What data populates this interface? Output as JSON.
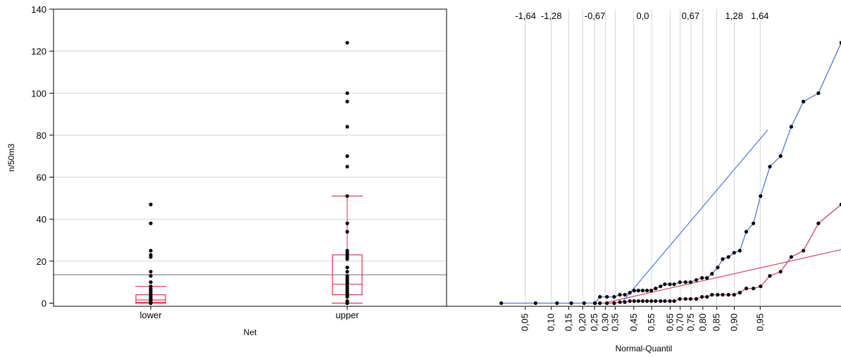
{
  "y_axis": {
    "label": "n/50m3",
    "ticks": [
      0,
      20,
      40,
      60,
      80,
      100,
      120,
      140
    ],
    "range": [
      -1.5,
      140
    ]
  },
  "colors": {
    "upper": "#4f76d9",
    "lower": "#d9435f",
    "box": "#e0304a",
    "grid": "#d4d4d4",
    "mean_line": "#888888",
    "points": "#000000"
  },
  "chart_data": [
    {
      "type": "box",
      "xlabel": "Net",
      "ylabel": "n/50m3",
      "ylim": [
        -1.5,
        140
      ],
      "grid": "horizontal",
      "overall_line": 13.5,
      "categories": [
        "lower",
        "upper"
      ],
      "groups": [
        {
          "name": "lower",
          "whisker_low": 0,
          "q1": 0.3,
          "median": 1.5,
          "q3": 4,
          "whisker_high": 8,
          "points": [
            47,
            38,
            25,
            23,
            22,
            15,
            13,
            10,
            8,
            7,
            6,
            5,
            4,
            3,
            3,
            2,
            2,
            1.5,
            1,
            1,
            0.5,
            0.3,
            0,
            0,
            0
          ]
        },
        {
          "name": "upper",
          "whisker_low": 0,
          "q1": 4,
          "median": 9,
          "q3": 23,
          "whisker_high": 51,
          "points": [
            124,
            100,
            96,
            84,
            70,
            65,
            51,
            38,
            34,
            25,
            24,
            23,
            22,
            21,
            17,
            15,
            13,
            12,
            11,
            10,
            9,
            8,
            7,
            6,
            5,
            4,
            3,
            1,
            0,
            0
          ]
        }
      ]
    },
    {
      "type": "line",
      "xlabel": "Normal-Quantil",
      "ylim": [
        -1.5,
        140
      ],
      "grid": "vertical",
      "bottom_ticks": [
        "0,05",
        "0,10",
        "0,15",
        "0,20",
        "0,25",
        "0,30",
        "0,35",
        "0,45",
        "0,55",
        "0,65",
        "0,70",
        "0,75",
        "0,80",
        "0,85",
        "0,90",
        "0,95"
      ],
      "top_ticks": [
        "-1,64",
        "-1,28",
        "-0,67",
        "0,0",
        "0,67",
        "1,28",
        "1,64"
      ],
      "series": [
        {
          "name": "upper",
          "reference_line": {
            "from": [
              -0.3,
              0
            ],
            "to": [
              1.75,
              82.5
            ]
          },
          "points": [
            [
              -1.98,
              0
            ],
            [
              -1.5,
              0
            ],
            [
              -1.2,
              0
            ],
            [
              -1.0,
              0
            ],
            [
              -0.82,
              0
            ],
            [
              -0.67,
              0
            ],
            [
              -0.6,
              3
            ],
            [
              -0.5,
              3
            ],
            [
              -0.4,
              3
            ],
            [
              -0.32,
              4
            ],
            [
              -0.25,
              4
            ],
            [
              -0.18,
              5
            ],
            [
              -0.12,
              6
            ],
            [
              -0.06,
              6
            ],
            [
              0.0,
              6
            ],
            [
              0.06,
              6
            ],
            [
              0.12,
              6
            ],
            [
              0.18,
              7
            ],
            [
              0.25,
              8
            ],
            [
              0.31,
              9
            ],
            [
              0.38,
              9
            ],
            [
              0.44,
              9
            ],
            [
              0.52,
              10
            ],
            [
              0.6,
              10
            ],
            [
              0.67,
              10
            ],
            [
              0.75,
              11
            ],
            [
              0.83,
              12
            ],
            [
              0.9,
              12
            ],
            [
              0.97,
              14
            ],
            [
              1.05,
              17
            ],
            [
              1.12,
              21
            ],
            [
              1.2,
              22
            ],
            [
              1.28,
              24
            ],
            [
              1.36,
              25
            ],
            [
              1.45,
              34
            ],
            [
              1.55,
              38
            ],
            [
              1.65,
              51
            ],
            [
              1.78,
              65
            ],
            [
              1.93,
              70
            ],
            [
              2.08,
              84
            ],
            [
              2.25,
              96
            ],
            [
              2.46,
              100
            ],
            [
              2.78,
              124
            ]
          ]
        },
        {
          "name": "lower",
          "reference_line": {
            "from": [
              -0.55,
              0
            ],
            "to": [
              2.78,
              25.5
            ]
          },
          "points": [
            [
              -0.67,
              0
            ],
            [
              -0.6,
              0
            ],
            [
              -0.5,
              0
            ],
            [
              -0.4,
              0
            ],
            [
              -0.32,
              0.5
            ],
            [
              -0.25,
              0.5
            ],
            [
              -0.18,
              1
            ],
            [
              -0.12,
              1
            ],
            [
              -0.06,
              1
            ],
            [
              0.0,
              1
            ],
            [
              0.06,
              1
            ],
            [
              0.12,
              1
            ],
            [
              0.18,
              1
            ],
            [
              0.25,
              1
            ],
            [
              0.31,
              1
            ],
            [
              0.38,
              1
            ],
            [
              0.44,
              1
            ],
            [
              0.52,
              2
            ],
            [
              0.6,
              2
            ],
            [
              0.67,
              2
            ],
            [
              0.75,
              2
            ],
            [
              0.83,
              3
            ],
            [
              0.9,
              3
            ],
            [
              0.97,
              4
            ],
            [
              1.05,
              4
            ],
            [
              1.12,
              4
            ],
            [
              1.2,
              4
            ],
            [
              1.28,
              4
            ],
            [
              1.36,
              5
            ],
            [
              1.45,
              7
            ],
            [
              1.55,
              7
            ],
            [
              1.65,
              8
            ],
            [
              1.78,
              13
            ],
            [
              1.93,
              15
            ],
            [
              2.08,
              22
            ],
            [
              2.25,
              25
            ],
            [
              2.46,
              38
            ],
            [
              2.78,
              47
            ]
          ]
        }
      ]
    }
  ]
}
